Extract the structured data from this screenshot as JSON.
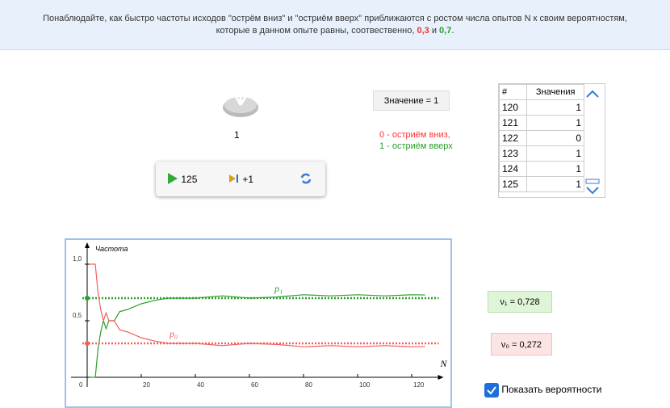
{
  "banner": {
    "line1": "Понаблюдайте, как быстро частоты исходов \"острём вниз\" и \"остриём вверх\" приближаются с ростом числа опытов N к своим вероятностям,",
    "line2_start": "которые в данном опыте равны, соотвественно,",
    "p0_text": "0,3",
    "and": "и",
    "p1_text": "0,7",
    "end": "."
  },
  "outcome": "1",
  "value_box": "Значение = 1",
  "legend": {
    "zero": "0 - остриём вниз,",
    "one": "1 - остриём вверх"
  },
  "controls": {
    "play": "125",
    "step": "+1"
  },
  "table": {
    "headers": [
      "#",
      "Значения"
    ],
    "rows": [
      [
        "120",
        "1"
      ],
      [
        "121",
        "1"
      ],
      [
        "122",
        "0"
      ],
      [
        "123",
        "1"
      ],
      [
        "124",
        "1"
      ],
      [
        "125",
        "1"
      ]
    ]
  },
  "chart": {
    "type": "line",
    "ylabel": "Частота",
    "xlabel": "N",
    "x": [
      1,
      2,
      3,
      4,
      5,
      6,
      7,
      8,
      10,
      12,
      15,
      20,
      25,
      30,
      40,
      50,
      60,
      70,
      80,
      90,
      100,
      110,
      120,
      125
    ],
    "series": [
      {
        "name": "p₁",
        "color": "#2e9e2e",
        "probability": 0.7,
        "values": [
          0,
          0,
          0,
          0.25,
          0.4,
          0.5,
          0.43,
          0.5,
          0.5,
          0.58,
          0.6,
          0.65,
          0.68,
          0.7,
          0.7,
          0.72,
          0.7,
          0.71,
          0.73,
          0.72,
          0.73,
          0.72,
          0.73,
          0.728
        ]
      },
      {
        "name": "p₀",
        "color": "#f06060",
        "probability": 0.3,
        "values": [
          1,
          1,
          1,
          0.75,
          0.6,
          0.5,
          0.57,
          0.5,
          0.5,
          0.42,
          0.4,
          0.35,
          0.32,
          0.3,
          0.3,
          0.28,
          0.3,
          0.29,
          0.27,
          0.28,
          0.27,
          0.28,
          0.27,
          0.272
        ]
      }
    ],
    "xlim": [
      0,
      130
    ],
    "ylim": [
      0,
      1.1
    ],
    "xticks": [
      0,
      20,
      40,
      60,
      80,
      100,
      120
    ],
    "yticks": [
      {
        "value": 0.5,
        "label": "0,5"
      },
      {
        "value": 1,
        "label": "1,0"
      }
    ]
  },
  "nu1": "ν₁ = 0,728",
  "nu0": "ν₀ = 0,272",
  "checkbox": "Показать вероятности"
}
